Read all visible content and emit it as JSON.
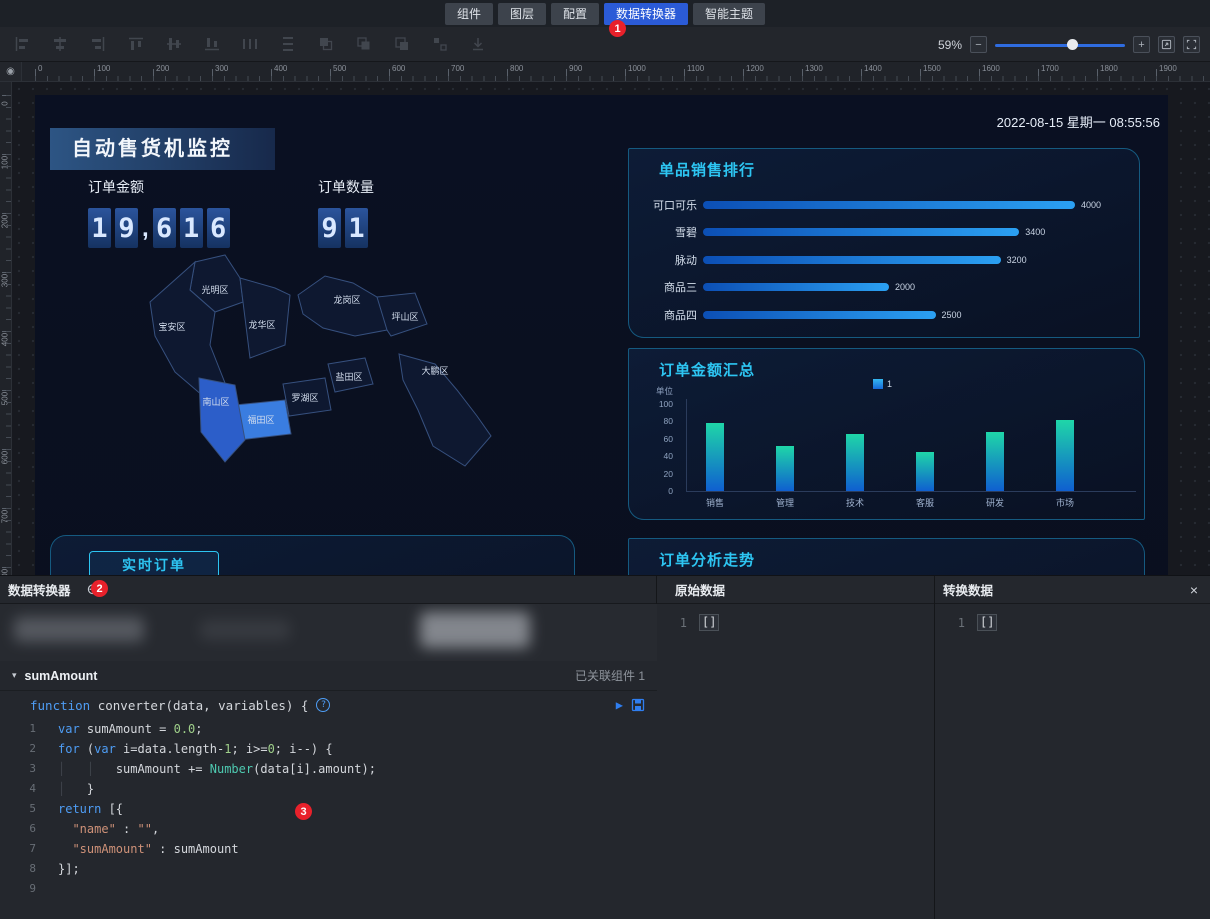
{
  "header": {
    "tabs": [
      {
        "id": "components",
        "label": "组件",
        "active": false
      },
      {
        "id": "layers",
        "label": "图层",
        "active": false
      },
      {
        "id": "config",
        "label": "配置",
        "active": false
      },
      {
        "id": "data-converter",
        "label": "数据转换器",
        "active": true
      },
      {
        "id": "smart-theme",
        "label": "智能主题",
        "active": false
      }
    ]
  },
  "annotations": {
    "badge1": "1",
    "badge2": "2",
    "badge3": "3"
  },
  "toolbar": {
    "zoom_percent": "59%"
  },
  "icons": {
    "close": "×",
    "add": "⊕",
    "caret": "▾",
    "run": "▶",
    "help": "?",
    "eye": "◉",
    "minus": "−",
    "plus": "+"
  },
  "ruler": {
    "h_labels": [
      "0",
      "100",
      "200",
      "300",
      "400",
      "500",
      "600",
      "700",
      "800",
      "900",
      "1000",
      "1100",
      "1200",
      "1300",
      "1400",
      "1500",
      "1600",
      "1700",
      "1800",
      "1900"
    ],
    "v_labels": [
      "0",
      "100",
      "200",
      "300",
      "400",
      "500",
      "600",
      "700",
      "800"
    ]
  },
  "canvas": {
    "datetime": "2022-08-15 星期一 08:55:56",
    "dashboard_title": "自动售货机监控",
    "stats": [
      {
        "label": "订单金额",
        "digits": "19,616"
      },
      {
        "label": "订单数量",
        "digits": "91"
      }
    ],
    "map": {
      "districts": [
        {
          "name": "光明区"
        },
        {
          "name": "宝安区"
        },
        {
          "name": "龙华区"
        },
        {
          "name": "龙岗区"
        },
        {
          "name": "坪山区"
        },
        {
          "name": "盐田区"
        },
        {
          "name": "大鹏区"
        },
        {
          "name": "罗湖区"
        },
        {
          "name": "福田区",
          "highlight": "#3a7de0"
        },
        {
          "name": "南山区",
          "highlight": "#2c5ec9"
        }
      ]
    },
    "panels": {
      "sales_ranking": {
        "title": "单品销售排行"
      },
      "order_summary": {
        "title": "订单金额汇总",
        "unit_label": "单位",
        "legend": "1"
      },
      "realtime_orders": {
        "title": "实时订单"
      },
      "order_trend": {
        "title": "订单分析走势"
      }
    }
  },
  "chart_data": [
    {
      "type": "bar",
      "orientation": "horizontal",
      "title": "单品销售排行",
      "categories": [
        "可口可乐",
        "雪碧",
        "脉动",
        "商品三",
        "商品四"
      ],
      "values": [
        4000,
        3400,
        3200,
        2000,
        2500
      ],
      "xlim": [
        0,
        4000
      ],
      "value_labels": true
    },
    {
      "type": "bar",
      "orientation": "vertical",
      "title": "订单金额汇总",
      "categories": [
        "销售",
        "管理",
        "技术",
        "客服",
        "研发",
        "市场"
      ],
      "values": [
        78,
        52,
        65,
        45,
        68,
        82
      ],
      "ylabel": "单位",
      "yticks": [
        0,
        20,
        40,
        60,
        80,
        100
      ],
      "ylim": [
        0,
        100
      ],
      "legend": [
        "1"
      ],
      "legend_position": "top"
    }
  ],
  "converter_panel": {
    "title": "数据转换器",
    "name": "sumAmount",
    "linked_label": "已关联组件 1",
    "signature": [
      {
        "t": "function ",
        "c": "kw"
      },
      {
        "t": "converter(data, variables) { ",
        "c": "plain"
      }
    ],
    "code_lines": [
      [
        {
          "t": "var",
          "c": "kw"
        },
        {
          "t": " sumAmount = ",
          "c": "plain"
        },
        {
          "t": "0.0",
          "c": "num"
        },
        {
          "t": ";",
          "c": "plain"
        }
      ],
      [
        {
          "t": "for",
          "c": "kw"
        },
        {
          "t": " (",
          "c": "plain"
        },
        {
          "t": "var",
          "c": "kw"
        },
        {
          "t": " i=data.length-",
          "c": "plain"
        },
        {
          "t": "1",
          "c": "num"
        },
        {
          "t": "; i>=",
          "c": "plain"
        },
        {
          "t": "0",
          "c": "num"
        },
        {
          "t": "; i--) {",
          "c": "plain"
        }
      ],
      [
        {
          "t": "│",
          "c": "guide"
        },
        {
          "t": "   ",
          "c": "plain"
        },
        {
          "t": "│",
          "c": "guide"
        },
        {
          "t": "   sumAmount += ",
          "c": "plain"
        },
        {
          "t": "Number",
          "c": "fn"
        },
        {
          "t": "(data[i].amount);",
          "c": "plain"
        }
      ],
      [
        {
          "t": "│",
          "c": "guide"
        },
        {
          "t": "   }",
          "c": "plain"
        }
      ],
      [
        {
          "t": "return",
          "c": "kw"
        },
        {
          "t": " [{",
          "c": "plain"
        }
      ],
      [
        {
          "t": "  ",
          "c": "plain"
        },
        {
          "t": "\"name\"",
          "c": "str"
        },
        {
          "t": " : ",
          "c": "plain"
        },
        {
          "t": "\"\"",
          "c": "str"
        },
        {
          "t": ",",
          "c": "plain"
        }
      ],
      [
        {
          "t": "  ",
          "c": "plain"
        },
        {
          "t": "\"sumAmount\"",
          "c": "str"
        },
        {
          "t": " : sumAmount",
          "c": "plain"
        }
      ],
      [
        {
          "t": "}];",
          "c": "plain"
        }
      ],
      []
    ],
    "sections": {
      "original": {
        "title": "原始数据",
        "line_no": "1",
        "content": "[]"
      },
      "transformed": {
        "title": "转换数据",
        "line_no": "1",
        "content": "[]"
      }
    }
  }
}
